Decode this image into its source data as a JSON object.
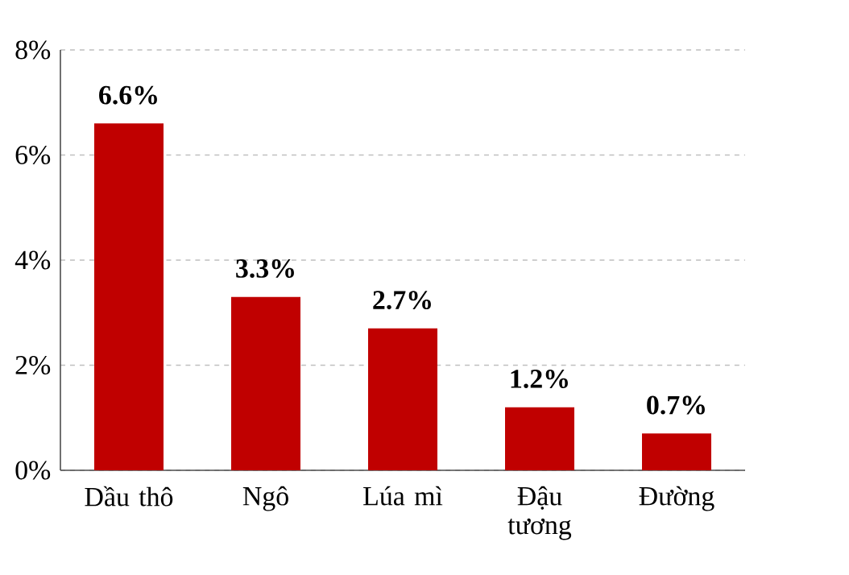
{
  "chart_data": {
    "type": "bar",
    "categories": [
      "Dầu thô",
      "Ngô",
      "Lúa mì",
      "Đậu tương",
      "Đường"
    ],
    "values": [
      6.6,
      3.3,
      2.7,
      1.2,
      0.7
    ],
    "value_labels": [
      "6.6%",
      "3.3%",
      "2.7%",
      "1.2%",
      "0.7%"
    ],
    "color": "#c00000",
    "ylim": [
      0,
      8
    ],
    "yticks": [
      {
        "value": 0,
        "label": "0%"
      },
      {
        "value": 2,
        "label": "2%"
      },
      {
        "value": 4,
        "label": "4%"
      },
      {
        "value": 6,
        "label": "6%"
      },
      {
        "value": 8,
        "label": "8%"
      }
    ],
    "grid": "y"
  }
}
